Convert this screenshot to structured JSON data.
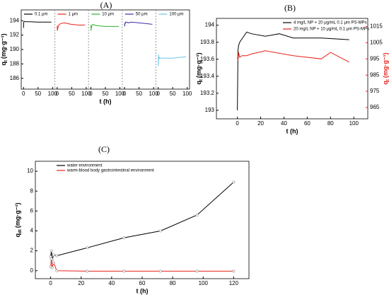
{
  "chart_data": [
    {
      "type": "line",
      "facets": true,
      "title": "(A)",
      "xlabel": "t (h)",
      "ylabel": {
        "symbol": "q",
        "subscript": "t",
        "unit": "(mg·g⁻¹)"
      },
      "xlim": [
        -8,
        108
      ],
      "xticks": [
        0,
        50,
        100
      ],
      "ylim": [
        184.5,
        195.5
      ],
      "yticks": [
        186,
        188,
        190,
        192,
        194
      ],
      "legend": "upper left",
      "series": [
        {
          "name": "0.1 μm",
          "color": "#000000",
          "x": [
            0,
            0.5,
            1,
            2,
            4,
            8,
            12,
            24,
            48,
            72,
            96
          ],
          "values": [
            193.0,
            193.6,
            193.8,
            193.9,
            193.9,
            193.85,
            193.85,
            193.85,
            193.8,
            193.8,
            193.8
          ]
        },
        {
          "name": "1 μm",
          "color": "#e8231b",
          "x": [
            0,
            0.5,
            1,
            2,
            4,
            8,
            12,
            24,
            48,
            72,
            96
          ],
          "values": [
            193.3,
            192.6,
            193.0,
            192.9,
            193.3,
            193.5,
            193.6,
            193.7,
            193.5,
            193.4,
            193.4
          ]
        },
        {
          "name": "10 μm",
          "color": "#2cb52c",
          "x": [
            0,
            0.5,
            1,
            2,
            4,
            8,
            12,
            24,
            48,
            72,
            96
          ],
          "values": [
            193.4,
            192.6,
            193.2,
            193.0,
            193.4,
            193.5,
            193.4,
            193.3,
            193.2,
            193.2,
            193.2
          ]
        },
        {
          "name": "50 μm",
          "color": "#3a2fa8",
          "x": [
            0,
            0.5,
            1,
            2,
            4,
            8,
            12,
            24,
            48,
            72,
            96
          ],
          "values": [
            193.5,
            193.2,
            193.7,
            193.6,
            193.8,
            193.8,
            193.7,
            193.8,
            193.7,
            193.6,
            193.5
          ]
        },
        {
          "name": "100 μm",
          "color": "#6ec6e6",
          "x": [
            0,
            0.5,
            1,
            2,
            4,
            8,
            12,
            24,
            48,
            72,
            96
          ],
          "values": [
            188.5,
            187.7,
            189.3,
            188.6,
            188.9,
            188.8,
            188.8,
            188.8,
            188.8,
            188.9,
            189.0
          ]
        }
      ]
    },
    {
      "type": "line",
      "title": "(B)",
      "xlabel": "t (h)",
      "ylabel": {
        "symbol": "q",
        "subscript": "t",
        "unit": "(mg·g⁻¹)"
      },
      "y2label": {
        "symbol": "q",
        "subscript": "t",
        "unit": "(mg·g⁻¹)"
      },
      "xlim": [
        -18,
        112
      ],
      "xticks": [
        0,
        20,
        40,
        60,
        80,
        100
      ],
      "ylim": [
        192.9,
        194.08
      ],
      "yticks": [
        193.0,
        193.2,
        193.4,
        193.6,
        193.8,
        194.0
      ],
      "y2lim": [
        958,
        1020
      ],
      "y2ticks": [
        965,
        975,
        985,
        995,
        1005,
        1015
      ],
      "y2color": "#e8231b",
      "legend": "upper right",
      "series": [
        {
          "name": "4 mg/L NP + 20 μg/mL 0.1 μm PS-MPs",
          "color": "#000000",
          "x": [
            0,
            0.5,
            1,
            2,
            4,
            8,
            12,
            24,
            36,
            48,
            72,
            96
          ],
          "values": [
            193.0,
            193.7,
            193.76,
            193.8,
            193.84,
            193.92,
            193.9,
            193.87,
            193.9,
            193.85,
            193.85,
            193.83
          ]
        },
        {
          "name": "20 mg/L NP + 10 μg/mL 0.1 μm PS-MPs",
          "color": "#e8231b",
          "axis": "y2",
          "x": [
            0,
            0.5,
            1,
            2,
            4,
            8,
            12,
            24,
            48,
            72,
            80,
            96
          ],
          "values": [
            996,
            994,
            999,
            996,
            997,
            997,
            998,
            1000,
            997,
            995,
            999,
            993
          ]
        }
      ]
    },
    {
      "type": "line",
      "markers": true,
      "title": "(C)",
      "xlabel": "t (h)",
      "ylabel": {
        "symbol": "q",
        "subscript": "dt",
        "unit": "(mg·g⁻¹)"
      },
      "xlim": [
        -10,
        130
      ],
      "xticks": [
        0,
        20,
        40,
        60,
        80,
        100,
        120
      ],
      "ylim": [
        -0.8,
        11
      ],
      "yticks": [
        0,
        2,
        4,
        6,
        8,
        10
      ],
      "legend": "upper left",
      "series": [
        {
          "name": "water environment",
          "color": "#000000",
          "x": [
            0,
            0.5,
            1,
            2,
            4,
            24,
            48,
            72,
            96,
            120
          ],
          "values": [
            1.4,
            2.0,
            1.1,
            1.6,
            1.5,
            2.3,
            3.3,
            4.0,
            5.6,
            8.9
          ]
        },
        {
          "name": "warm-blood body gastrointestinal environment",
          "color": "#e8231b",
          "x": [
            0,
            0.5,
            1,
            2,
            4,
            24,
            48,
            72,
            96,
            120
          ],
          "values": [
            0.4,
            1.2,
            0.3,
            0.8,
            0.0,
            -0.05,
            -0.05,
            -0.05,
            -0.05,
            -0.05
          ]
        }
      ]
    }
  ]
}
